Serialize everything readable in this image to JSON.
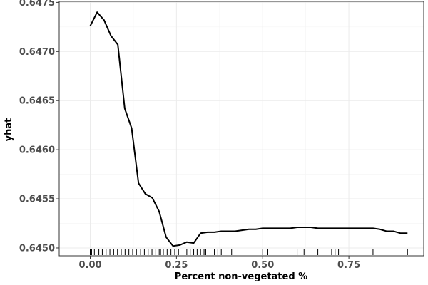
{
  "chart_data": {
    "type": "line",
    "xlabel": "Percent non-vegetated %",
    "ylabel": "yhat",
    "xlim": [
      -0.09,
      0.967
    ],
    "ylim": [
      0.64492,
      0.64751
    ],
    "x_ticks": [
      0.0,
      0.25,
      0.5,
      0.75
    ],
    "x_tick_labels": [
      "0.00",
      "0.25",
      "0.50",
      "0.75"
    ],
    "y_ticks": [
      0.645,
      0.6455,
      0.646,
      0.6465,
      0.647,
      0.6475
    ],
    "y_tick_labels": [
      "0.6450",
      "0.6455",
      "0.6460",
      "0.6465",
      "0.6470",
      "0.6475"
    ],
    "grid": true,
    "series": [
      {
        "x": [
          0.0,
          0.02,
          0.04,
          0.06,
          0.08,
          0.1,
          0.12,
          0.14,
          0.16,
          0.18,
          0.2,
          0.22,
          0.24,
          0.26,
          0.28,
          0.3,
          0.32,
          0.34,
          0.36,
          0.38,
          0.4,
          0.42,
          0.44,
          0.46,
          0.48,
          0.5,
          0.52,
          0.54,
          0.56,
          0.58,
          0.6,
          0.62,
          0.64,
          0.66,
          0.68,
          0.7,
          0.72,
          0.74,
          0.76,
          0.78,
          0.8,
          0.82,
          0.84,
          0.86,
          0.88,
          0.9,
          0.92
        ],
        "y": [
          0.64726,
          0.6474,
          0.64732,
          0.64716,
          0.64707,
          0.64642,
          0.64622,
          0.64566,
          0.64555,
          0.64551,
          0.64537,
          0.64511,
          0.64502,
          0.64503,
          0.64506,
          0.64505,
          0.64515,
          0.64516,
          0.64516,
          0.64517,
          0.64517,
          0.64517,
          0.64518,
          0.64519,
          0.64519,
          0.6452,
          0.6452,
          0.6452,
          0.6452,
          0.6452,
          0.64521,
          0.64521,
          0.64521,
          0.6452,
          0.6452,
          0.6452,
          0.6452,
          0.6452,
          0.6452,
          0.6452,
          0.6452,
          0.6452,
          0.64519,
          0.64517,
          0.64517,
          0.64515,
          0.64515
        ]
      }
    ],
    "rug": [
      0.0,
      0.004,
      0.012,
      0.025,
      0.035,
      0.046,
      0.057,
      0.068,
      0.079,
      0.09,
      0.101,
      0.112,
      0.123,
      0.134,
      0.146,
      0.157,
      0.168,
      0.179,
      0.19,
      0.2,
      0.204,
      0.212,
      0.223,
      0.234,
      0.245,
      0.256,
      0.28,
      0.29,
      0.3,
      0.31,
      0.32,
      0.33,
      0.335,
      0.36,
      0.37,
      0.38,
      0.41,
      0.5,
      0.515,
      0.6,
      0.62,
      0.66,
      0.7,
      0.71,
      0.72,
      0.82,
      0.92
    ]
  }
}
